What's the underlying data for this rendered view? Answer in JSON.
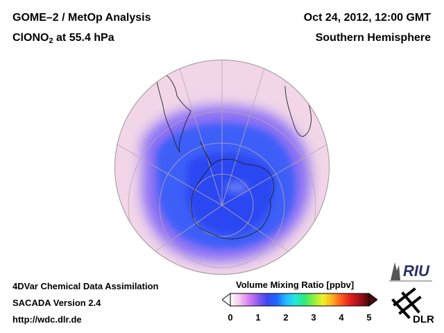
{
  "header": {
    "title_line1": "GOME–2 / MetOp Analysis",
    "species": "ClONO",
    "species_sub": "2",
    "pressure_text": " at 55.4 hPa",
    "date": "Oct 24, 2012, 12:00 GMT",
    "region": "Southern Hemisphere"
  },
  "footer": {
    "line1": "4DVar Chemical Data Assimilation",
    "line2": "SACADA Version 2.4",
    "line3": "http://wdc.dlr.de"
  },
  "colorbar": {
    "title": "Volume Mixing Ratio [ppbv]",
    "ticks": [
      "0",
      "1",
      "2",
      "3",
      "4",
      "5"
    ],
    "min": 0,
    "max": 5,
    "colors": [
      "#ffffff",
      "#f6c8ee",
      "#d97ef0",
      "#8a5cf0",
      "#3a4af0",
      "#1e66ff",
      "#24b8ff",
      "#22e8e0",
      "#2ee87a",
      "#8ef03c",
      "#f0f028",
      "#ffb020",
      "#ff5a1e",
      "#e01e1e",
      "#a0101a",
      "#4a0808"
    ]
  },
  "logos": {
    "riu_text": "RIU",
    "dlr_text": "DLR"
  },
  "map": {
    "projection": "orthographic",
    "center": "South Pole",
    "field_colors": {
      "background": "#f2d6e8",
      "ring": "#8a70f6",
      "vortex": "#3c5ef8",
      "core": "#2a46f2",
      "minimum": "#5f76f6"
    }
  }
}
